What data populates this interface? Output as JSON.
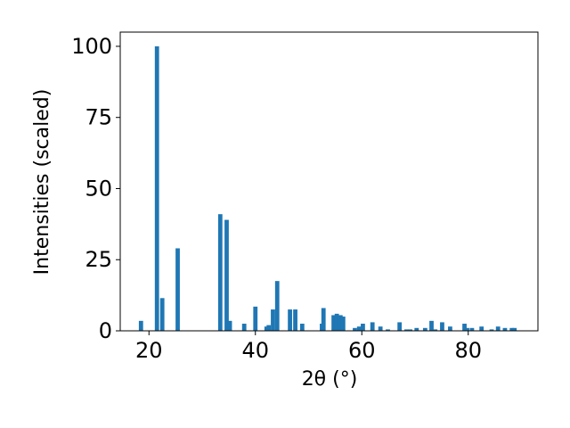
{
  "chart_data": {
    "type": "bar",
    "x_label": "2θ (°)",
    "y_label": "Intensities (scaled)",
    "color": "#1f77b4",
    "x": [
      18.5,
      21.5,
      22.5,
      25.4,
      33.4,
      34.6,
      35.2,
      37.9,
      40.0,
      42.1,
      42.5,
      43.3,
      44.1,
      46.5,
      47.5,
      48.8,
      52.5,
      52.8,
      54.7,
      55.3,
      56.0,
      56.5,
      58.7,
      59.5,
      60.2,
      62.0,
      63.5,
      64.9,
      67.1,
      68.4,
      69.1,
      70.3,
      71.9,
      73.1,
      73.8,
      75.1,
      76.6,
      79.3,
      79.8,
      80.7,
      82.5,
      84.4,
      85.6,
      86.9,
      88.2,
      88.7
    ],
    "values": [
      3.5,
      100,
      11.5,
      29,
      41,
      39,
      3.5,
      2.5,
      8.5,
      1.5,
      2,
      7.5,
      17.5,
      7.5,
      7.5,
      2.5,
      2.5,
      8,
      5.5,
      6,
      5.5,
      5,
      1,
      1.5,
      2.5,
      3,
      1.5,
      0.5,
      3,
      0.5,
      0.5,
      1,
      1,
      3.5,
      0.5,
      3,
      1.5,
      2.5,
      1,
      1,
      1.5,
      0.5,
      1.5,
      1,
      1,
      1
    ],
    "xlim": [
      14.6,
      93.1
    ],
    "ylim": [
      0,
      105
    ],
    "xticks": [
      20,
      40,
      60,
      80
    ],
    "yticks": [
      0,
      25,
      50,
      75,
      100
    ],
    "grid": false
  }
}
